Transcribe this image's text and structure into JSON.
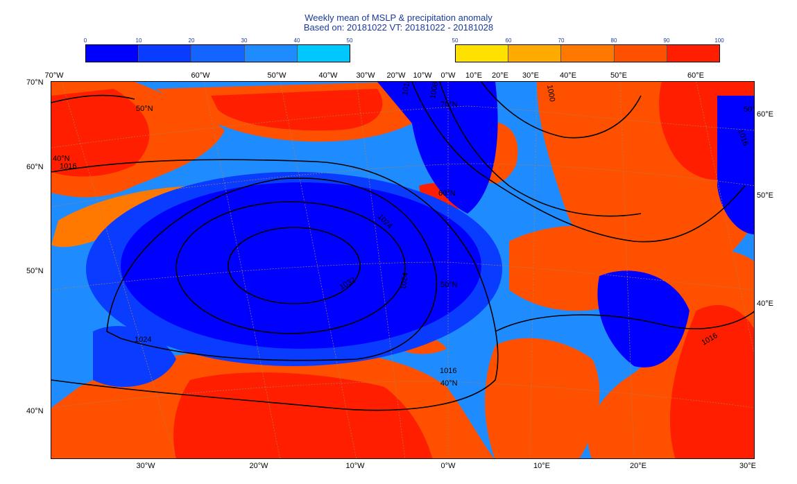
{
  "title": {
    "line1": "Weekly mean of MSLP & precipitation anomaly",
    "line2": "Based on: 20181022 VT: 20181022 - 20181028"
  },
  "legend_left": {
    "ticks": [
      "0",
      "10",
      "20",
      "30",
      "40",
      "50"
    ],
    "colors": [
      "#0000ff",
      "#0a3cff",
      "#1464ff",
      "#1e8cff",
      "#00c8ff"
    ]
  },
  "legend_right": {
    "ticks": [
      "50",
      "60",
      "70",
      "80",
      "90",
      "100"
    ],
    "colors": [
      "#ffe100",
      "#ffaa00",
      "#ff7800",
      "#ff5000",
      "#ff1e00"
    ]
  },
  "axes": {
    "top": [
      "70°W",
      "60°W",
      "50°W",
      "40°W",
      "30°W",
      "20°W",
      "10°W",
      "0°W",
      "10°E",
      "20°E",
      "30°E",
      "40°E",
      "50°E",
      "60°E"
    ],
    "bottom": [
      "30°W",
      "20°W",
      "10°W",
      "0°W",
      "10°E",
      "20°E",
      "30°E"
    ],
    "left": [
      "70°N",
      "60°N",
      "50°N",
      "40°N"
    ],
    "right": [
      "60°E",
      "50°E",
      "40°E"
    ]
  },
  "grid_labels": [
    "50°N",
    "40°N",
    "50°N",
    "60°N",
    "70°N",
    "50°N",
    "40°N"
  ],
  "isobars": [
    "1008",
    "1016",
    "1016",
    "1016",
    "1016",
    "1016",
    "1000",
    "1024",
    "1024",
    "1024",
    "1032"
  ]
}
